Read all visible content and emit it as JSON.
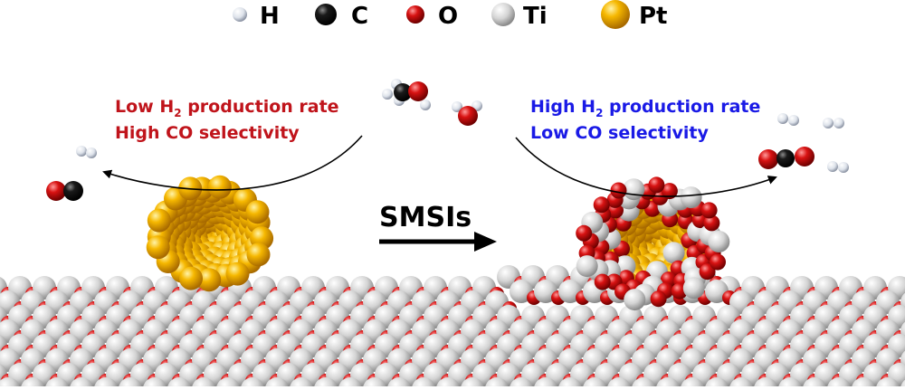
{
  "legend": {
    "items": [
      {
        "label": "H",
        "element": "H"
      },
      {
        "label": "C",
        "element": "C"
      },
      {
        "label": "O",
        "element": "O"
      },
      {
        "label": "Ti",
        "element": "Ti"
      },
      {
        "label": "Pt",
        "element": "Pt"
      }
    ]
  },
  "left_panel": {
    "line1_prefix": "Low H",
    "line1_sub": "2",
    "line1_suffix": " production rate",
    "line2": "High CO selectivity",
    "color": "#c0141b"
  },
  "right_panel": {
    "line1_prefix": "High H",
    "line1_sub": "2",
    "line1_suffix": " production rate",
    "line2": "Low CO selectivity",
    "color": "#1a1ae6"
  },
  "center_label": "SMSIs",
  "colors": {
    "H": "#e6e8ee",
    "C": "#111111",
    "O": "#d01010",
    "Ti": "#d6d6d6",
    "Pt": "#f2b100"
  }
}
